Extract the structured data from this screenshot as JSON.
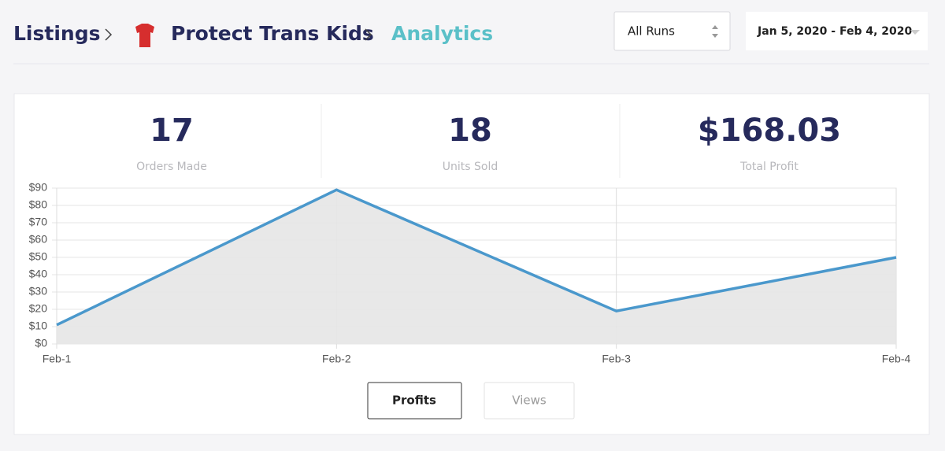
{
  "header": {
    "breadcrumb": [
      "Listings",
      "Protect Trans Kids",
      "Analytics"
    ],
    "run_select": "All Runs",
    "date_range": "Jan 5, 2020 - Feb 4, 2020"
  },
  "stats": [
    {
      "value": "17",
      "label": "Orders Made"
    },
    {
      "value": "18",
      "label": "Units Sold"
    },
    {
      "value": "$168.03",
      "label": "Total Profit"
    }
  ],
  "chart_data": {
    "type": "line",
    "categories": [
      "Feb-1",
      "Feb-2",
      "Feb-3",
      "Feb-4"
    ],
    "values": [
      11,
      89,
      19,
      50
    ],
    "color": "#4a98cc",
    "area_color": "#e6e6e6",
    "ylim": [
      0,
      90
    ],
    "yticks": [
      {
        "value": 0,
        "label": "$0"
      },
      {
        "value": 10,
        "label": "$10"
      },
      {
        "value": 20,
        "label": "$20"
      },
      {
        "value": 30,
        "label": "$30"
      },
      {
        "value": 40,
        "label": "$40"
      },
      {
        "value": 50,
        "label": "$50"
      },
      {
        "value": 60,
        "label": "$60"
      },
      {
        "value": 70,
        "label": "$70"
      },
      {
        "value": 80,
        "label": "$80"
      },
      {
        "value": 90,
        "label": "$90"
      }
    ],
    "grid": true
  },
  "tabs": [
    "Profits",
    "Views"
  ]
}
